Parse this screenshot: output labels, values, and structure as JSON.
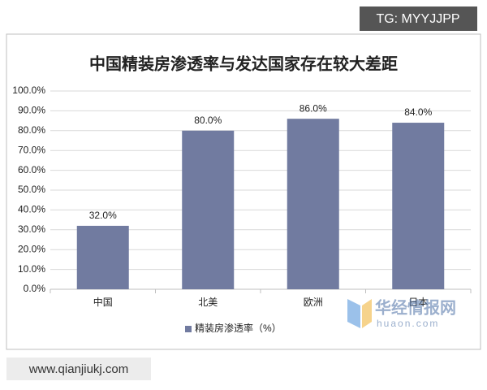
{
  "chart_data": {
    "type": "bar",
    "title": "中国精装房渗透率与发达国家存在较大差距",
    "categories": [
      "中国",
      "北美",
      "欧洲",
      "日本"
    ],
    "series": [
      {
        "name": "精装房渗透率（%）",
        "color": "#717ba0",
        "values": [
          32,
          80,
          86,
          84
        ],
        "value_labels": [
          "32.0%",
          "80.0%",
          "86.0%",
          "84.0%"
        ]
      }
    ],
    "ylim": [
      0,
      100
    ],
    "yticks": [
      {
        "value": 0,
        "label": "0.0%"
      },
      {
        "value": 10,
        "label": "10.0%"
      },
      {
        "value": 20,
        "label": "20.0%"
      },
      {
        "value": 30,
        "label": "30.0%"
      },
      {
        "value": 40,
        "label": "40.0%"
      },
      {
        "value": 50,
        "label": "50.0%"
      },
      {
        "value": 60,
        "label": "60.0%"
      },
      {
        "value": 70,
        "label": "70.0%"
      },
      {
        "value": 80,
        "label": "80.0%"
      },
      {
        "value": 90,
        "label": "90.0%"
      },
      {
        "value": 100,
        "label": "100.0%"
      }
    ],
    "grid": true,
    "legend": "bottom"
  },
  "watermarks": {
    "top_right": "TG: MYYJJPP",
    "bottom_left": "www.qianjiukj.com",
    "logo_name": "华经情报网",
    "logo_url": "huaon.com"
  }
}
